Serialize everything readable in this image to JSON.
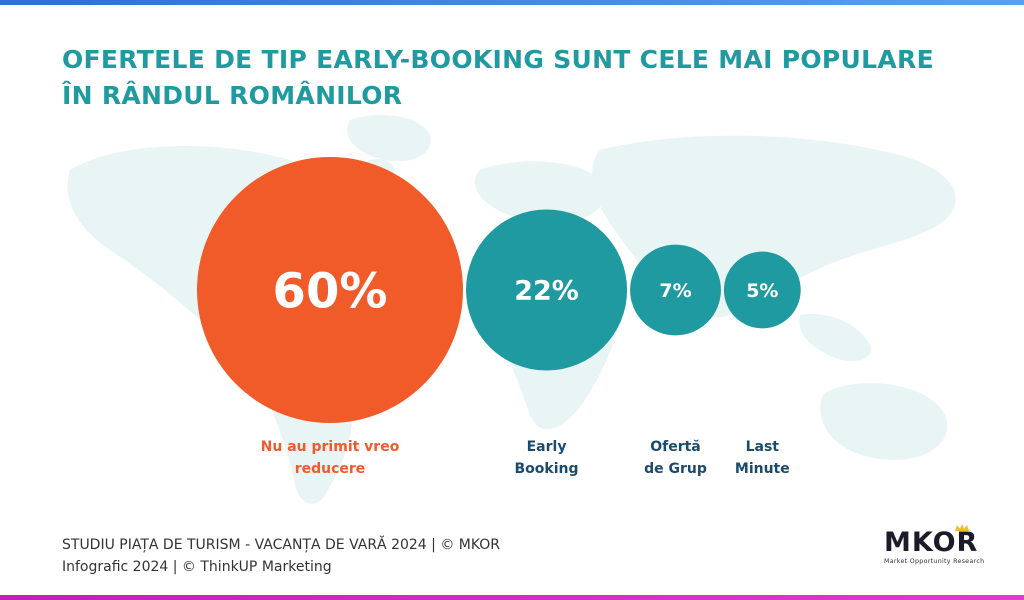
{
  "title_lines": [
    "OFERTELE DE TIP EARLY-BOOKING SUNT CELE MAI POPULARE",
    "ÎN RÂNDUL ROMÂNILOR"
  ],
  "chart_data": {
    "type": "bubble",
    "unit": "%",
    "categories": [
      "Nu au primit vreo reducere",
      "Early Booking",
      "Ofertă de Grup",
      "Last Minute"
    ],
    "category_lines": [
      [
        "Nu au primit vreo",
        "reducere"
      ],
      [
        "Early",
        "Booking"
      ],
      [
        "Ofertă",
        "de Grup"
      ],
      [
        "Last",
        "Minute"
      ]
    ],
    "values": [
      60,
      22,
      7,
      5
    ],
    "value_labels": [
      "60%",
      "22%",
      "7%",
      "5%"
    ],
    "colors": [
      "#f15a29",
      "#1e9aa0",
      "#1e9aa0",
      "#1e9aa0"
    ],
    "label_colors": [
      "#f15a29",
      "#1a4a6e",
      "#1a4a6e",
      "#1a4a6e"
    ]
  },
  "footer": {
    "line1": "STUDIU PIAȚA DE TURISM - VACANȚA DE VARĂ 2024 | © MKOR",
    "line2": "Infografic 2024 | © ThinkUP Marketing"
  },
  "logo": {
    "word": "MKOR",
    "tagline": "Market Opportunity Research",
    "colors": {
      "crown": "#f5b82e",
      "text": "#1b1b2b"
    }
  }
}
